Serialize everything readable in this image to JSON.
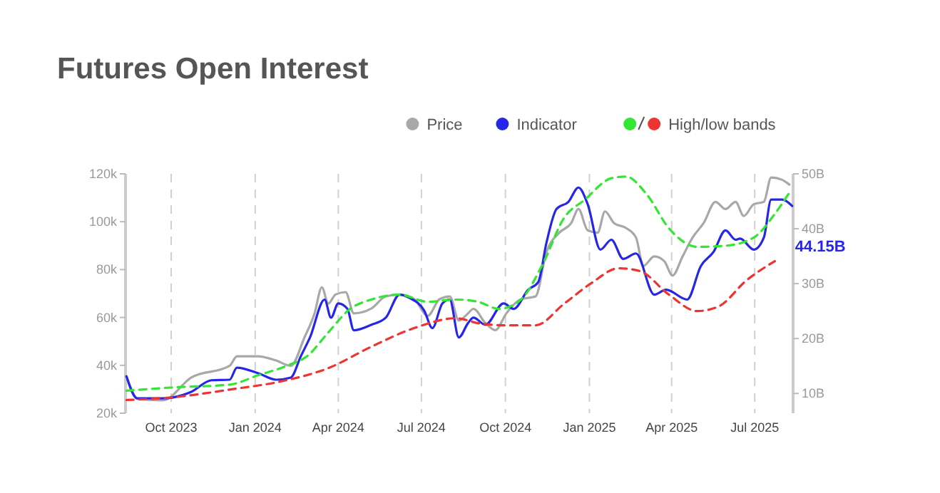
{
  "chart_data": {
    "type": "line",
    "title": "Futures Open Interest",
    "legend": "top right",
    "grid": "x",
    "xlim": [
      "2023-08-12",
      "2025-08-12"
    ],
    "xticks": [
      {
        "value": "2023-10-01",
        "label": "Oct 2023"
      },
      {
        "value": "2024-01-01",
        "label": "Jan 2024"
      },
      {
        "value": "2024-04-01",
        "label": "Apr 2024"
      },
      {
        "value": "2024-07-01",
        "label": "Jul 2024"
      },
      {
        "value": "2024-10-01",
        "label": "Oct 2024"
      },
      {
        "value": "2025-01-01",
        "label": "Jan 2025"
      },
      {
        "value": "2025-04-01",
        "label": "Apr 2025"
      },
      {
        "value": "2025-07-01",
        "label": "Jul 2025"
      }
    ],
    "ylim": [
      20,
      120
    ],
    "yticks": [
      {
        "value": 20,
        "label": "20k"
      },
      {
        "value": 40,
        "label": "40k"
      },
      {
        "value": 60,
        "label": "60k"
      },
      {
        "value": 80,
        "label": "80k"
      },
      {
        "value": 100,
        "label": "100k"
      },
      {
        "value": 120,
        "label": "120k"
      }
    ],
    "y2lim": [
      6.4,
      50
    ],
    "y2ticks": [
      {
        "value": 10,
        "label": "10B"
      },
      {
        "value": 20,
        "label": "20B"
      },
      {
        "value": 30,
        "label": "30B"
      },
      {
        "value": 40,
        "label": "40B"
      },
      {
        "value": 50,
        "label": "50B"
      }
    ],
    "series": [
      {
        "name": "Price",
        "color": "#a8a8a8",
        "line_style": "solid",
        "x": [
          "2023-08-13",
          "2023-08-25",
          "2023-09-22",
          "2023-10-23",
          "2023-12-04",
          "2023-12-12",
          "2024-01-04",
          "2024-01-24",
          "2024-02-09",
          "2024-02-24",
          "2024-03-06",
          "2024-03-14",
          "2024-03-21",
          "2024-03-29",
          "2024-04-09",
          "2024-04-18",
          "2024-05-07",
          "2024-05-23",
          "2024-06-07",
          "2024-06-23",
          "2024-07-08",
          "2024-07-21",
          "2024-08-01",
          "2024-08-11",
          "2024-08-21",
          "2024-08-27",
          "2024-09-09",
          "2024-09-20",
          "2024-10-02",
          "2024-10-18",
          "2024-11-03",
          "2024-11-15",
          "2024-11-29",
          "2024-12-12",
          "2024-12-20",
          "2024-12-30",
          "2025-01-10",
          "2025-01-18",
          "2025-01-28",
          "2025-02-10",
          "2025-02-21",
          "2025-03-01",
          "2025-03-13",
          "2025-03-24",
          "2025-04-02",
          "2025-04-13",
          "2025-04-24",
          "2025-05-06",
          "2025-05-19",
          "2025-05-30",
          "2025-06-10",
          "2025-06-19",
          "2025-06-30",
          "2025-07-11",
          "2025-07-19",
          "2025-07-31",
          "2025-08-08"
        ],
        "values": [
          35.5,
          26,
          25.4,
          34.9,
          39.8,
          43.8,
          43.8,
          42,
          39.8,
          51.7,
          61.7,
          72.6,
          65.8,
          69.6,
          70.6,
          61.7,
          63.7,
          68.8,
          69.6,
          67.7,
          60.7,
          67.7,
          68.8,
          58.7,
          61.7,
          63.6,
          57.7,
          54.7,
          61.7,
          67.6,
          68.8,
          87.4,
          95.4,
          99.4,
          105.3,
          96.4,
          95.4,
          104.3,
          99.4,
          97.4,
          93.4,
          81.5,
          85.5,
          83.5,
          77.5,
          85.5,
          93.4,
          99.4,
          108.3,
          105.3,
          108.3,
          102.4,
          107.3,
          108.3,
          118.5,
          117.5,
          115.5
        ]
      },
      {
        "name": "Indicator",
        "color": "#2626e8",
        "line_style": "solid",
        "axis": "y2",
        "x": [
          "2023-08-13",
          "2023-08-25",
          "2023-09-22",
          "2023-10-23",
          "2023-11-14",
          "2023-12-04",
          "2023-12-12",
          "2024-01-04",
          "2024-01-24",
          "2024-02-09",
          "2024-02-20",
          "2024-03-01",
          "2024-03-17",
          "2024-03-24",
          "2024-04-01",
          "2024-04-11",
          "2024-04-18",
          "2024-05-07",
          "2024-05-23",
          "2024-06-07",
          "2024-06-18",
          "2024-07-04",
          "2024-07-13",
          "2024-07-24",
          "2024-08-01",
          "2024-08-11",
          "2024-08-21",
          "2024-08-27",
          "2024-09-09",
          "2024-09-29",
          "2024-10-10",
          "2024-10-26",
          "2024-11-06",
          "2024-11-15",
          "2024-11-26",
          "2024-12-09",
          "2024-12-20",
          "2024-12-30",
          "2025-01-13",
          "2025-01-25",
          "2025-02-07",
          "2025-02-21",
          "2025-03-13",
          "2025-03-26",
          "2025-04-18",
          "2025-05-03",
          "2025-05-17",
          "2025-05-30",
          "2025-06-10",
          "2025-06-15",
          "2025-06-30",
          "2025-07-11",
          "2025-07-19",
          "2025-07-31",
          "2025-08-11"
        ],
        "value_labels": [
          null,
          null,
          null,
          null,
          null,
          null,
          null,
          null,
          null,
          null,
          null,
          null,
          null,
          null,
          null,
          null,
          null,
          null,
          null,
          null,
          null,
          null,
          null,
          null,
          null,
          null,
          null,
          null,
          null,
          null,
          null,
          null,
          null,
          null,
          null,
          null,
          null,
          null,
          null,
          null,
          null,
          null,
          null,
          null,
          null,
          null,
          null,
          null,
          null,
          null,
          null,
          null,
          null,
          null,
          "44.15B"
        ],
        "values": [
          13.1,
          9.1,
          9.1,
          10.3,
          12.4,
          12.5,
          14.7,
          13.7,
          12.5,
          12.9,
          16.8,
          20.2,
          27.1,
          23.8,
          26.4,
          25.4,
          21.5,
          22.5,
          23.8,
          28,
          27.4,
          25.1,
          21.9,
          26.4,
          27.1,
          20.2,
          22.8,
          23.8,
          22.5,
          26.4,
          25.4,
          28.9,
          30.3,
          37.5,
          43.6,
          44.9,
          47.5,
          44.5,
          36.2,
          38,
          34.5,
          35.5,
          28,
          28.9,
          27.1,
          33.2,
          35.8,
          39.7,
          38,
          38.2,
          36.2,
          38.4,
          45.3,
          45.3,
          44.15
        ]
      },
      {
        "color": "#33e633",
        "line_style": "dashed",
        "axis": "y2",
        "x": [
          "2023-08-13",
          "2023-10-03",
          "2023-12-04",
          "2024-01-04",
          "2024-02-04",
          "2024-02-27",
          "2024-03-21",
          "2024-04-14",
          "2024-05-07",
          "2024-06-07",
          "2024-07-08",
          "2024-08-08",
          "2024-09-01",
          "2024-09-24",
          "2024-10-18",
          "2024-11-11",
          "2024-12-04",
          "2024-12-27",
          "2025-01-25",
          "2025-02-10",
          "2025-03-05",
          "2025-03-29",
          "2025-04-29",
          "2025-05-30",
          "2025-06-30",
          "2025-07-23",
          "2025-08-10"
        ],
        "values": [
          10.5,
          11.1,
          11.6,
          13.3,
          15,
          16.8,
          21.1,
          25.4,
          27.1,
          28,
          26.7,
          27.1,
          26.7,
          25.4,
          27.1,
          33.6,
          41.9,
          45.3,
          49.2,
          49.5,
          46.2,
          40.1,
          36.7,
          36.9,
          38.4,
          42.7,
          47.1
        ]
      },
      {
        "name": "High/low bands",
        "color": "#ee3333",
        "line_style": "dashed",
        "axis": "y2",
        "x": [
          "2023-08-13",
          "2023-10-03",
          "2023-12-04",
          "2024-02-04",
          "2024-03-21",
          "2024-05-07",
          "2024-06-23",
          "2024-08-08",
          "2024-09-01",
          "2024-10-02",
          "2024-11-03",
          "2024-12-04",
          "2025-01-04",
          "2025-02-02",
          "2025-02-25",
          "2025-03-29",
          "2025-04-29",
          "2025-05-22",
          "2025-06-22",
          "2025-07-23"
        ],
        "values": [
          8.8,
          9.3,
          10.7,
          12.4,
          14.6,
          18.5,
          21.9,
          23.7,
          22.8,
          22.4,
          22.4,
          26.3,
          30.2,
          32.8,
          32.3,
          28,
          25,
          25.8,
          30.6,
          34.1
        ]
      }
    ]
  }
}
